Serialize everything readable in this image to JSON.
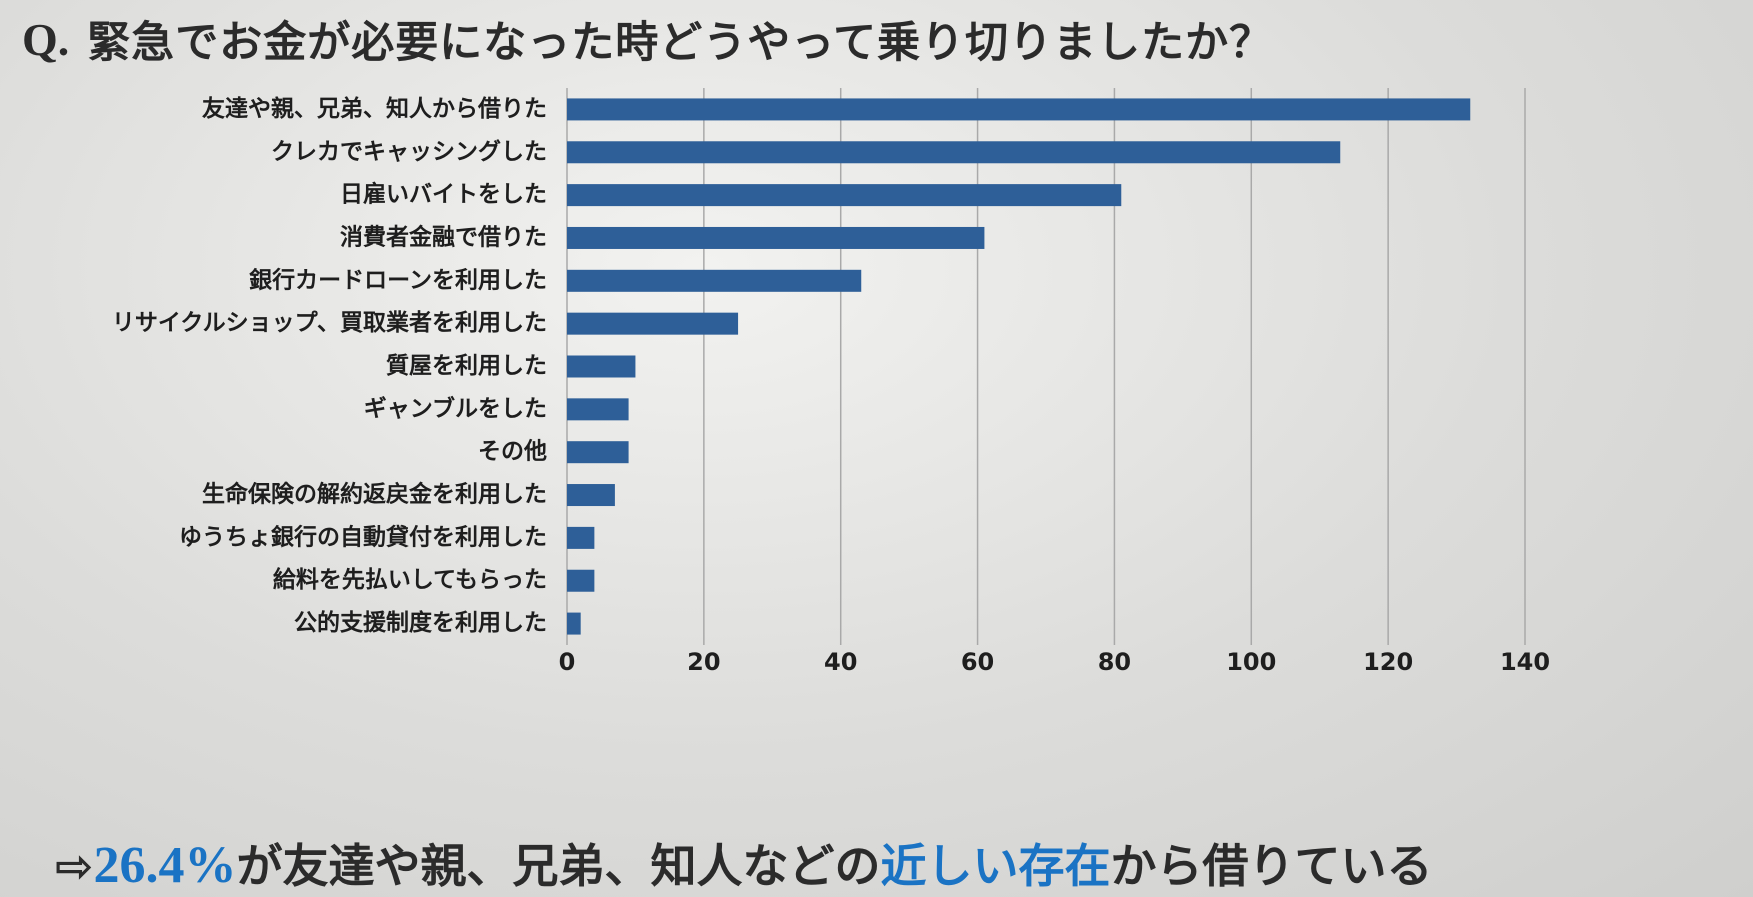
{
  "header": {
    "label": "Q.",
    "question": "緊急でお金が必要になった時どうやって乗り切りましたか？"
  },
  "chart_data": {
    "type": "hbar",
    "categories": [
      "友達や親、兄弟、知人から借りた",
      "クレカでキャッシングした",
      "日雇いバイトをした",
      "消費者金融で借りた",
      "銀行カードローンを利用した",
      "リサイクルショップ、買取業者を利用した",
      "質屋を利用した",
      "ギャンブルをした",
      "その他",
      "生命保険の解約返戻金を利用した",
      "ゆうちょ銀行の自動貸付を利用した",
      "給料を先払いしてもらった",
      "公的支援制度を利用した"
    ],
    "values": [
      132,
      113,
      81,
      61,
      43,
      25,
      10,
      9,
      9,
      7,
      4,
      4,
      2
    ],
    "color": "#2e5f98",
    "xlim": [
      0,
      140
    ],
    "xticks": [
      0,
      20,
      40,
      60,
      80,
      100,
      120,
      140
    ],
    "grid": true
  },
  "conclusion": {
    "arrow": "⇨",
    "percent": "26.4%",
    "text1": "が友達や親、兄弟、知人などの",
    "highlight": "近しい存在",
    "text2": "から借りている"
  }
}
